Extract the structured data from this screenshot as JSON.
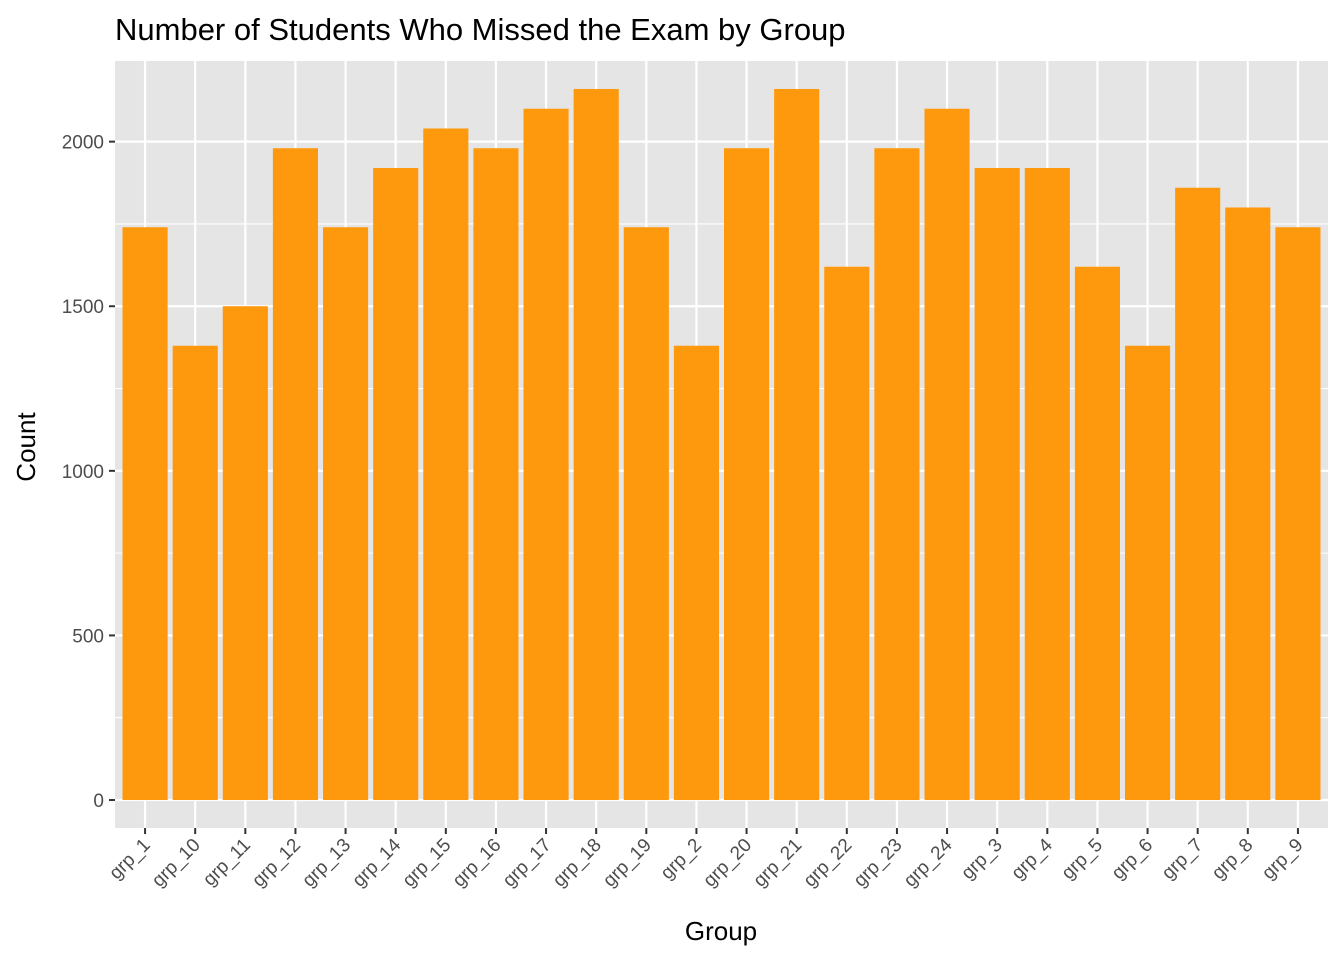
{
  "chart_data": {
    "type": "bar",
    "title": "Number of Students Who Missed the Exam by Group",
    "xlabel": "Group",
    "ylabel": "Count",
    "categories": [
      "grp_1",
      "grp_10",
      "grp_11",
      "grp_12",
      "grp_13",
      "grp_14",
      "grp_15",
      "grp_16",
      "grp_17",
      "grp_18",
      "grp_19",
      "grp_2",
      "grp_20",
      "grp_21",
      "grp_22",
      "grp_23",
      "grp_24",
      "grp_3",
      "grp_4",
      "grp_5",
      "grp_6",
      "grp_7",
      "grp_8",
      "grp_9"
    ],
    "values": [
      1740,
      1380,
      1500,
      1980,
      1740,
      1920,
      2040,
      1980,
      2100,
      2160,
      1740,
      1380,
      1980,
      2160,
      1620,
      1980,
      2100,
      1920,
      1920,
      1620,
      1380,
      1860,
      1800,
      1740
    ],
    "ylim": [
      -85,
      2245
    ],
    "yticks": [
      0,
      500,
      1000,
      1500,
      2000
    ],
    "grid": true,
    "legend": "none",
    "colors": {
      "bar": "#FE980D",
      "panel": "#E5E5E5",
      "grid": "#FFFFFF"
    }
  }
}
